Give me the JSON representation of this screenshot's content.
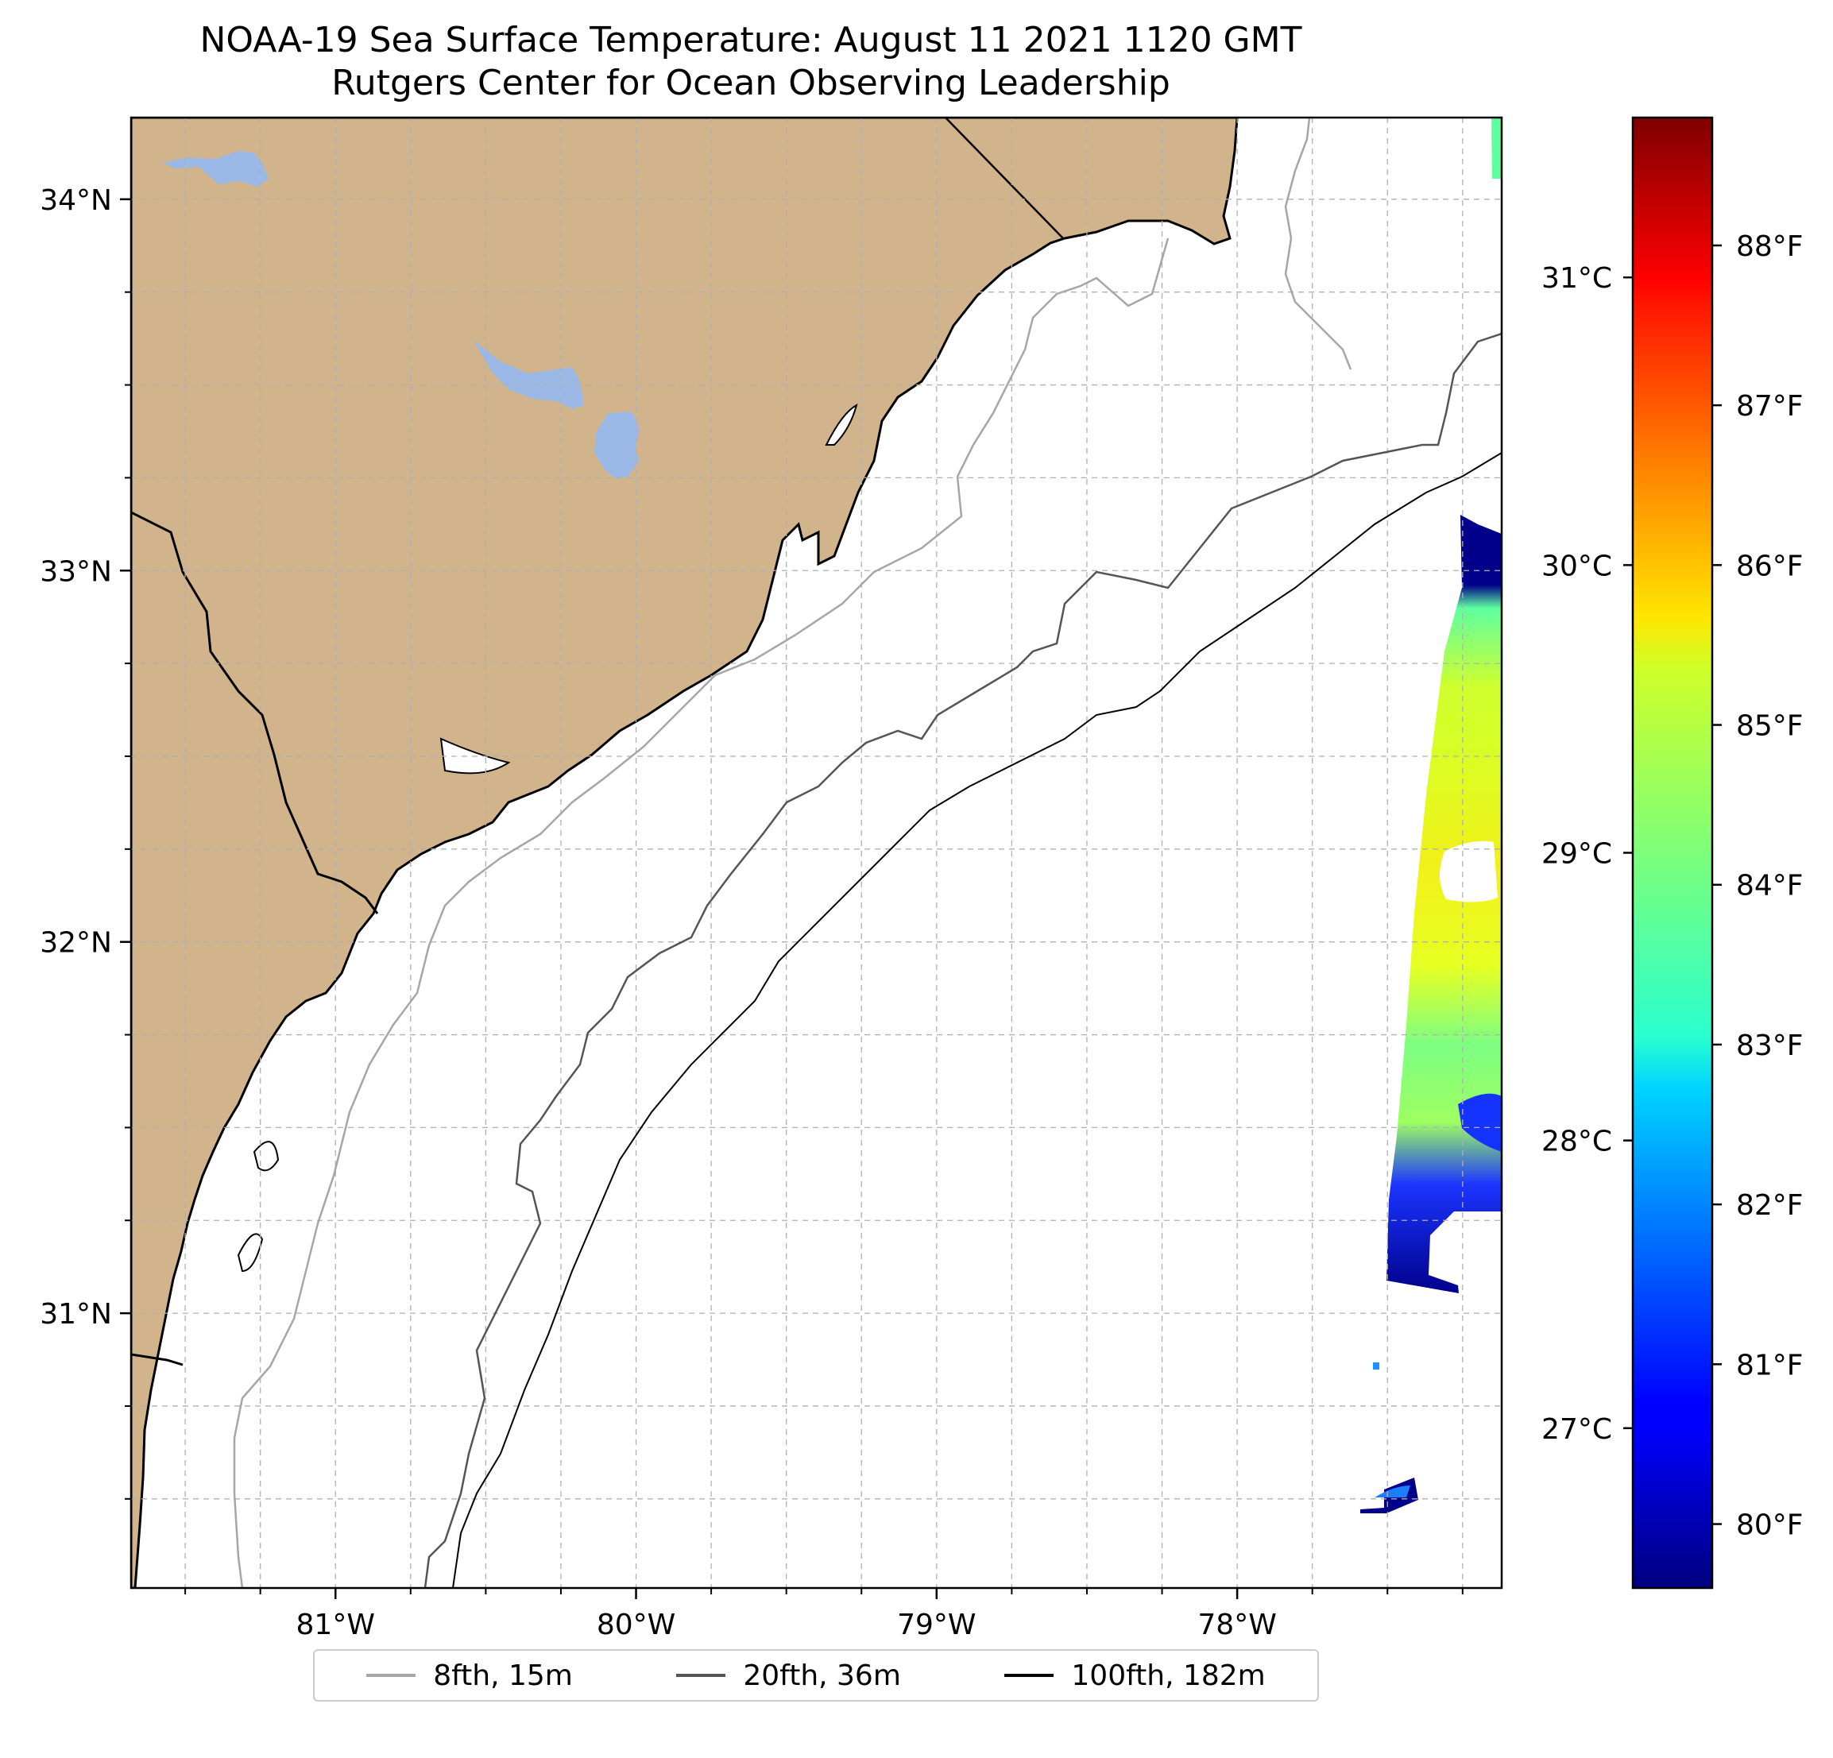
{
  "title": {
    "line1": "NOAA-19 Sea Surface Temperature: August 11 2021 1120 GMT",
    "line2": "Rutgers Center for Ocean Observing Leadership"
  },
  "map": {
    "extent": {
      "lon_min": -81.68,
      "lon_max": -77.12,
      "lat_min": 30.26,
      "lat_max": 34.22
    },
    "lon_ticks": [
      {
        "value": -81,
        "label": "81°W"
      },
      {
        "value": -80,
        "label": "80°W"
      },
      {
        "value": -79,
        "label": "79°W"
      },
      {
        "value": -78,
        "label": "78°W"
      }
    ],
    "lat_ticks": [
      {
        "value": 34,
        "label": "34°N"
      },
      {
        "value": 33,
        "label": "33°N"
      },
      {
        "value": 32,
        "label": "32°N"
      },
      {
        "value": 31,
        "label": "31°N"
      }
    ],
    "land_color": "#d2b48c",
    "water_color": "#9bb8e6",
    "gridlines": true
  },
  "colorbar": {
    "colormap": "jet",
    "range_f": [
      79.6,
      88.8
    ],
    "celsius_ticks": [
      {
        "value": 31,
        "label": "31°C"
      },
      {
        "value": 30,
        "label": "30°C"
      },
      {
        "value": 29,
        "label": "29°C"
      },
      {
        "value": 28,
        "label": "28°C"
      },
      {
        "value": 27,
        "label": "27°C"
      }
    ],
    "fahrenheit_ticks": [
      {
        "value": 88,
        "label": "88°F"
      },
      {
        "value": 87,
        "label": "87°F"
      },
      {
        "value": 86,
        "label": "86°F"
      },
      {
        "value": 85,
        "label": "85°F"
      },
      {
        "value": 84,
        "label": "84°F"
      },
      {
        "value": 83,
        "label": "83°F"
      },
      {
        "value": 82,
        "label": "82°F"
      },
      {
        "value": 81,
        "label": "81°F"
      },
      {
        "value": 80,
        "label": "80°F"
      }
    ]
  },
  "legend": {
    "items": [
      {
        "label": "8fth, 15m",
        "color": "#a6a6a6"
      },
      {
        "label": "20fth, 36m",
        "color": "#555555"
      },
      {
        "label": "100fth, 182m",
        "color": "#000000"
      }
    ]
  }
}
